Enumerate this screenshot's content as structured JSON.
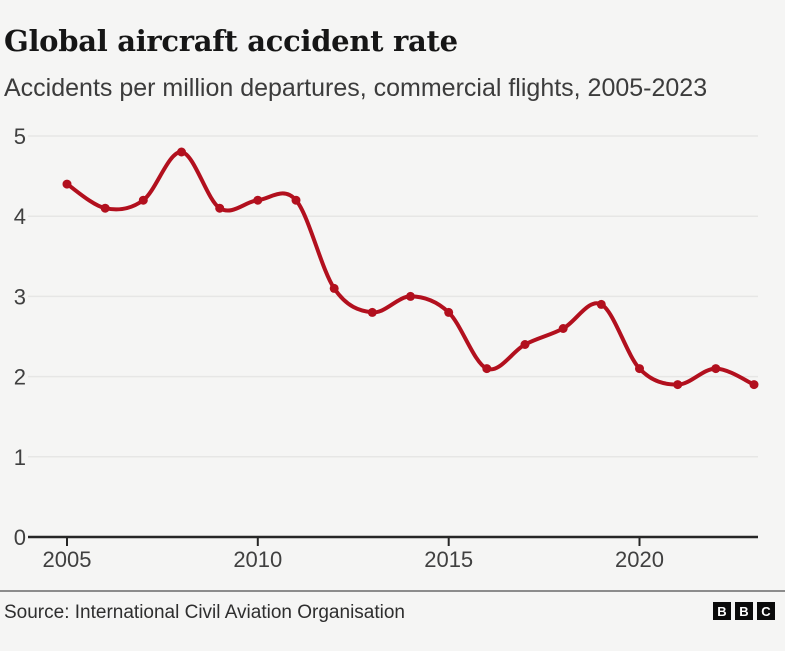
{
  "header": {
    "title": "Global aircraft accident rate",
    "subtitle": "Accidents per million departures, commercial flights, 2005-2023"
  },
  "chart_data": {
    "type": "line",
    "title": "Global aircraft accident rate",
    "subtitle": "Accidents per million departures, commercial flights, 2005-2023",
    "x": [
      2005,
      2006,
      2007,
      2008,
      2009,
      2010,
      2011,
      2012,
      2013,
      2014,
      2015,
      2016,
      2017,
      2018,
      2019,
      2020,
      2021,
      2022,
      2023
    ],
    "series": [
      {
        "name": "Accidents per million departures",
        "values": [
          4.4,
          4.1,
          4.2,
          4.8,
          4.1,
          4.2,
          4.2,
          3.1,
          2.8,
          3.0,
          2.8,
          2.1,
          2.4,
          2.6,
          2.9,
          2.1,
          1.9,
          2.1,
          1.9
        ],
        "color": "#b2101e"
      }
    ],
    "xlabel": "",
    "ylabel": "",
    "xlim": [
      2005,
      2023
    ],
    "ylim": [
      0,
      5
    ],
    "x_ticks": [
      2005,
      2010,
      2015,
      2020
    ],
    "y_ticks": [
      0,
      1,
      2,
      3,
      4,
      5
    ],
    "grid": "horizontal",
    "legend": "none",
    "marker": "circle",
    "smoothing": "catmull-rom"
  },
  "footer": {
    "source": "Source: International Civil Aviation Organisation",
    "logo_letters": [
      "B",
      "B",
      "C"
    ]
  },
  "colors": {
    "line": "#b2101e",
    "background": "#f5f5f4",
    "grid": "#e6e6e5",
    "axis": "#262626",
    "label": "#404040",
    "divider": "#8c8c8c"
  }
}
